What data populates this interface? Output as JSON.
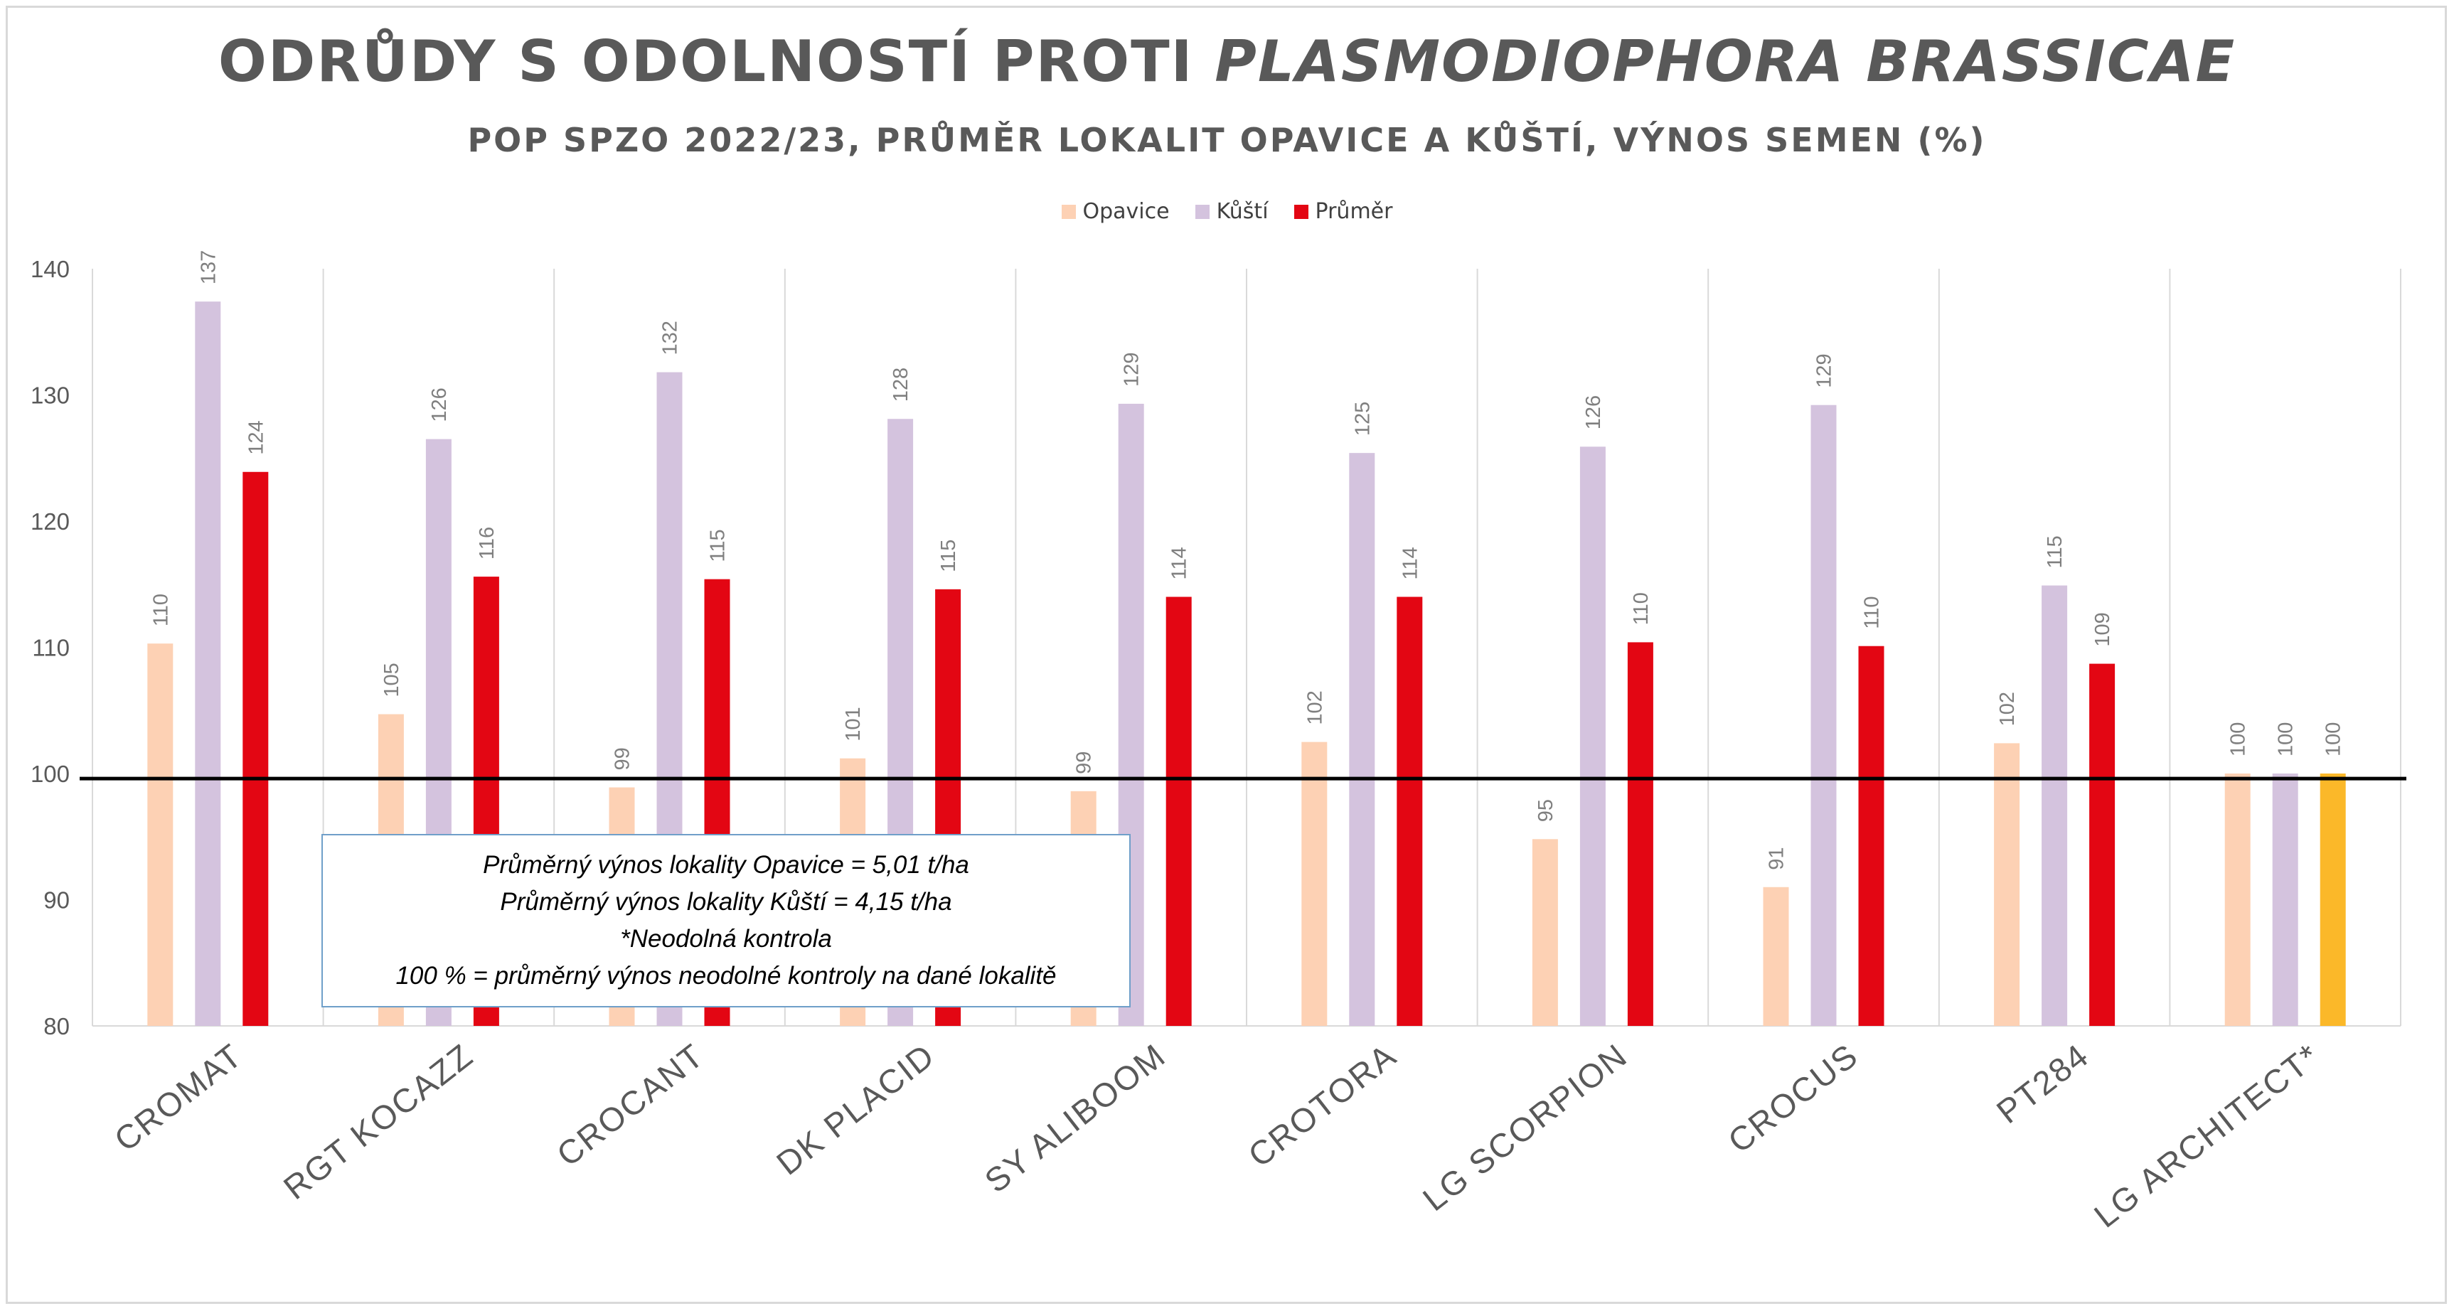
{
  "title_part1": "ODRŮDY S ODOLNOSTÍ PROTI ",
  "title_part2": "PLASMODIOPHORA BRASSICAE",
  "subtitle": "POP SPZO 2022/23, PRŮMĚR LOKALIT OPAVICE A KŮŠTÍ, VÝNOS SEMEN (%)",
  "notes": [
    "Průměrný výnos lokality Opavice = 5,01 t/ha",
    "Průměrný výnos lokality Kůští = 4,15 t/ha",
    "*Neodolná kontrola",
    "100 % = průměrný výnos neodolné kontroly na dané lokalitě"
  ],
  "colors": {
    "opavice": "#fdd1b4",
    "kusti": "#d4c3de",
    "prumer": "#e30613",
    "control_highlight": "#fbb829",
    "reference_line": "#000000",
    "grid": "#d9d9d9",
    "text": "#595959"
  },
  "chart_data": {
    "type": "bar",
    "title": "ODRŮDY S ODOLNOSTÍ PROTI PLASMODIOPHORA BRASSICAE",
    "subtitle": "POP SPZO 2022/23, PRŮMĚR LOKALIT OPAVICE A KŮŠTÍ, VÝNOS SEMEN (%)",
    "categories": [
      "CROMAT",
      "RGT KOCAZZ",
      "CROCANT",
      "DK PLACID",
      "SY ALIBOOM",
      "CROTORA",
      "LG SCORPION",
      "CROCUS",
      "PT284",
      "LG ARCHITECT*"
    ],
    "series": [
      {
        "name": "Opavice",
        "values": [
          110.3,
          104.7,
          98.9,
          101.2,
          98.6,
          102.5,
          94.8,
          91.0,
          102.4,
          100.0
        ],
        "labels": [
          "110",
          "105",
          "99",
          "101",
          "99",
          "102",
          "95",
          "91",
          "102",
          "100"
        ]
      },
      {
        "name": "Kůští",
        "values": [
          137.4,
          126.5,
          131.8,
          128.1,
          129.3,
          125.4,
          125.9,
          129.2,
          114.9,
          100.0
        ],
        "labels": [
          "137",
          "126",
          "132",
          "128",
          "129",
          "125",
          "126",
          "129",
          "115",
          "100"
        ]
      },
      {
        "name": "Průměr",
        "values": [
          123.9,
          115.6,
          115.4,
          114.6,
          114.0,
          114.0,
          110.4,
          110.1,
          108.7,
          100.0
        ],
        "labels": [
          "124",
          "116",
          "115",
          "115",
          "114",
          "114",
          "110",
          "110",
          "109",
          "100"
        ]
      }
    ],
    "ylim": [
      80,
      140
    ],
    "yticks": [
      80,
      90,
      100,
      110,
      120,
      130,
      140
    ],
    "reference_line": 99.6,
    "legend_position": "top-center",
    "grid": "vertical category separators"
  }
}
